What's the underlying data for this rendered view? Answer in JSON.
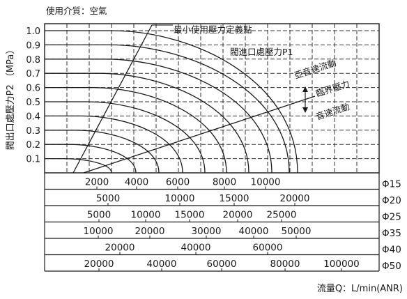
{
  "chart_data": {
    "type": "line",
    "medium": "使用介質：空氣",
    "ylabel": "閥出口處壓力P2 （MPa）",
    "xlabel": "流量Q：L/min(ANR)",
    "y_ticks": [
      "1.0",
      "0.9",
      "0.8",
      "0.7",
      "0.6",
      "0.5",
      "0.4",
      "0.3",
      "0.2",
      "0.1"
    ],
    "ylim": [
      0,
      1.0
    ],
    "grid": true,
    "annotations": {
      "min_pressure": "最小使用壓力定義點",
      "inlet_pressure": "閥進口處壓力P1",
      "subsonic": "亞音速流動",
      "critical": "臨界壓力",
      "sonic": "音速流動"
    },
    "inlet_pressure_curves": [
      0.1,
      0.2,
      0.3,
      0.4,
      0.5,
      0.6,
      0.7,
      0.8,
      0.9,
      1.0
    ],
    "flow_scales": [
      {
        "size": "Φ15",
        "ticks": [
          "2000",
          "4000",
          "6000",
          "8000",
          "10000"
        ]
      },
      {
        "size": "Φ20",
        "ticks": [
          "5000",
          "10000",
          "15000",
          "20000"
        ]
      },
      {
        "size": "Φ25",
        "ticks": [
          "5000",
          "10000",
          "15000",
          "20000",
          "25000"
        ]
      },
      {
        "size": "Φ35",
        "ticks": [
          "10000",
          "20000",
          "30000",
          "40000",
          "50000"
        ]
      },
      {
        "size": "Φ40",
        "ticks": [
          "20000",
          "40000",
          "60000"
        ]
      },
      {
        "size": "Φ50",
        "ticks": [
          "20000",
          "40000",
          "60000",
          "80000",
          "100000"
        ]
      }
    ]
  }
}
